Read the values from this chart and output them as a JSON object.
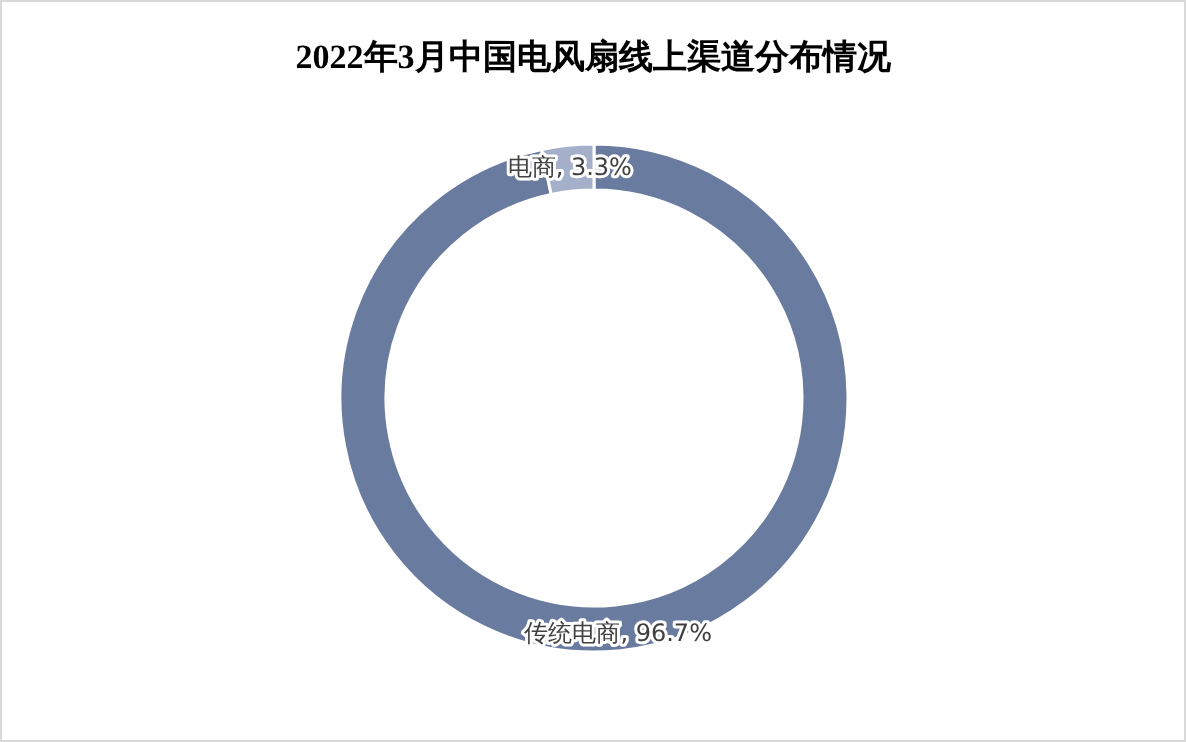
{
  "chart_data": {
    "type": "donut",
    "title": "2022年3月中国电风扇线上渠道分布情况",
    "categories": [
      "传统电商",
      "电商"
    ],
    "values": [
      96.7,
      3.3
    ],
    "colors": [
      "#6a7ba0",
      "#a4b0c9"
    ],
    "value_labels": [
      "96.7%",
      "3.3%"
    ]
  }
}
